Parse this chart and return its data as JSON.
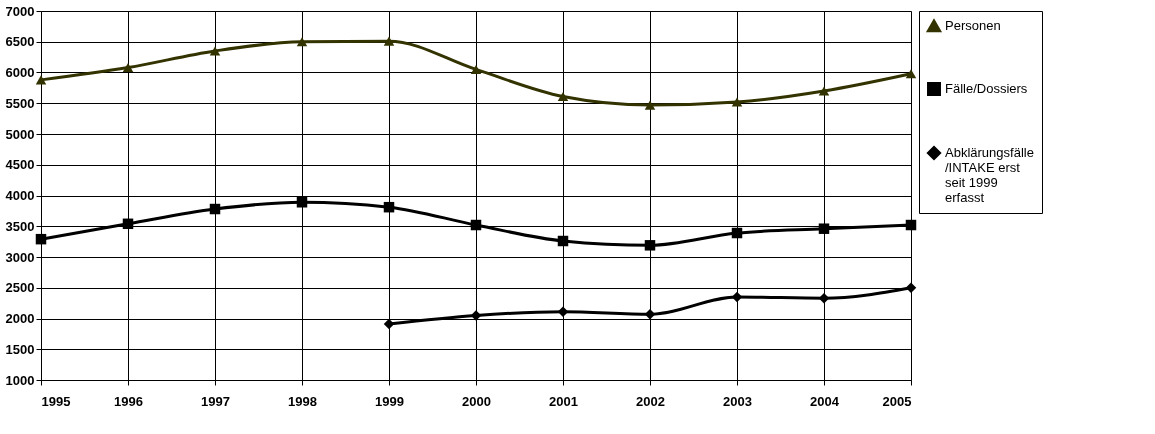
{
  "chart_data": {
    "type": "line",
    "x": [
      1995,
      1996,
      1997,
      1998,
      1999,
      2000,
      2001,
      2002,
      2003,
      2004,
      2005
    ],
    "series": [
      {
        "name": "Personen",
        "color": "#333300",
        "marker": "triangle",
        "values": [
          5880,
          6080,
          6350,
          6500,
          6510,
          6050,
          5610,
          5470,
          5520,
          5700,
          5980
        ]
      },
      {
        "name": "Fälle/Dossiers",
        "color": "#000000",
        "marker": "square",
        "values": [
          3290,
          3540,
          3780,
          3890,
          3810,
          3520,
          3260,
          3190,
          3390,
          3460,
          3520
        ]
      },
      {
        "name": "Abklärungsfälle /INTAKE erst seit 1999 erfasst",
        "color": "#000000",
        "marker": "diamond",
        "values": [
          null,
          null,
          null,
          null,
          1910,
          2050,
          2110,
          2070,
          2350,
          2330,
          2500
        ]
      }
    ],
    "xlim": [
      1995,
      2005
    ],
    "xticks": [
      1995,
      1996,
      1997,
      1998,
      1999,
      2000,
      2001,
      2002,
      2003,
      2004,
      2005
    ],
    "ylim": [
      1000,
      7000
    ],
    "yticks": [
      1000,
      1500,
      2000,
      2500,
      3000,
      3500,
      4000,
      4500,
      5000,
      5500,
      6000,
      6500,
      7000
    ],
    "grid": true,
    "legend": "right",
    "line_style": "solid"
  }
}
